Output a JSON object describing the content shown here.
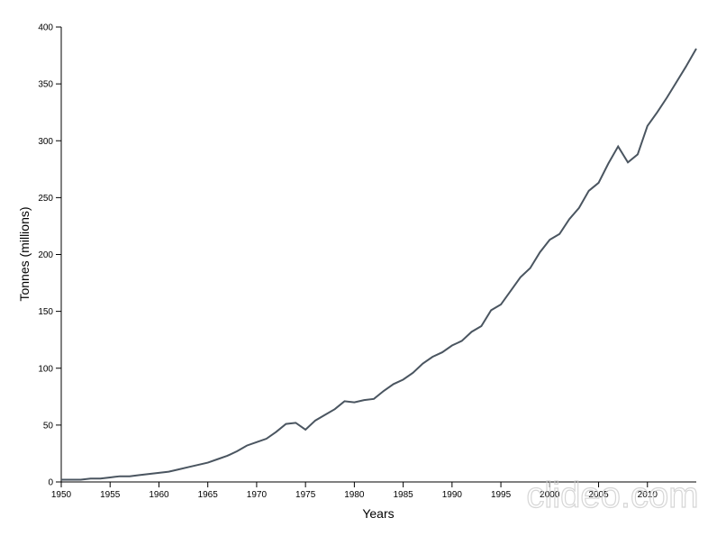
{
  "chart_data": {
    "type": "line",
    "x_label": "Years",
    "y_label": "Tonnes (millions)",
    "watermark": "clideo.com",
    "x": [
      1950,
      1951,
      1952,
      1953,
      1954,
      1955,
      1956,
      1957,
      1958,
      1959,
      1960,
      1961,
      1962,
      1963,
      1964,
      1965,
      1966,
      1967,
      1968,
      1969,
      1970,
      1971,
      1972,
      1973,
      1974,
      1975,
      1976,
      1977,
      1978,
      1979,
      1980,
      1981,
      1982,
      1983,
      1984,
      1985,
      1986,
      1987,
      1988,
      1989,
      1990,
      1991,
      1992,
      1993,
      1994,
      1995,
      1996,
      1997,
      1998,
      1999,
      2000,
      2001,
      2002,
      2003,
      2004,
      2005,
      2006,
      2007,
      2008,
      2009,
      2010,
      2011,
      2012,
      2013,
      2014,
      2015
    ],
    "series": [
      {
        "color": "#4a5560",
        "values": [
          2,
          2,
          2,
          3,
          3,
          4,
          5,
          5,
          6,
          7,
          8,
          9,
          11,
          13,
          15,
          17,
          20,
          23,
          27,
          32,
          35,
          38,
          44,
          51,
          52,
          46,
          54,
          59,
          64,
          71,
          70,
          72,
          73,
          80,
          86,
          90,
          96,
          104,
          110,
          114,
          120,
          124,
          132,
          137,
          151,
          156,
          168,
          180,
          188,
          202,
          213,
          218,
          231,
          241,
          256,
          263,
          280,
          295,
          281,
          288,
          313,
          325,
          338,
          352,
          366,
          381
        ]
      }
    ],
    "xlim": [
      1950,
      2015
    ],
    "ylim": [
      0,
      400
    ],
    "xticks": [
      1950,
      1955,
      1960,
      1965,
      1970,
      1975,
      1980,
      1985,
      1990,
      1995,
      2000,
      2005,
      2010
    ],
    "yticks": [
      0,
      50,
      100,
      150,
      200,
      250,
      300,
      350,
      400
    ]
  }
}
